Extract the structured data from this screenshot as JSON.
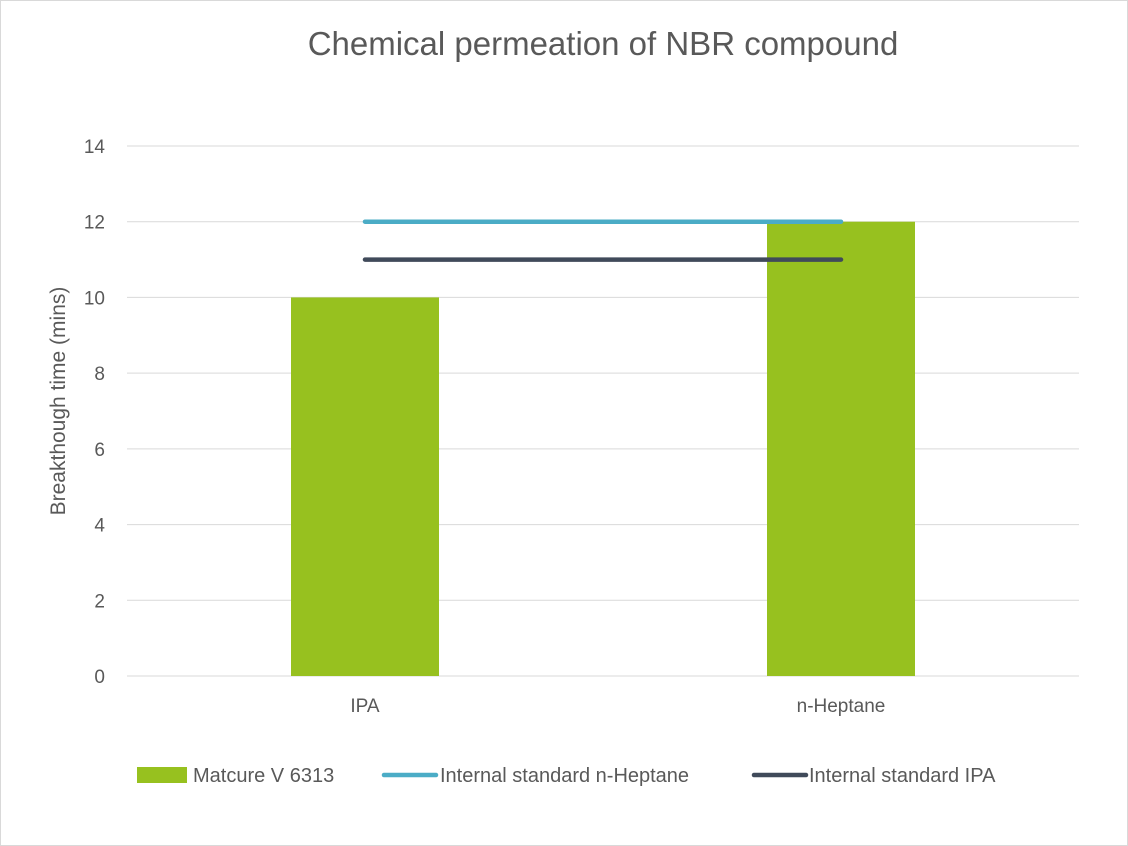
{
  "chart_data": {
    "type": "bar",
    "title": "Chemical permeation of NBR compound",
    "xlabel": "",
    "ylabel": "Breakthough time (mins)",
    "categories": [
      "IPA",
      "n-Heptane"
    ],
    "ylim": [
      0,
      14
    ],
    "yticks": [
      0,
      2,
      4,
      6,
      8,
      10,
      12,
      14
    ],
    "grid": true,
    "legend_position": "bottom",
    "series": [
      {
        "name": "Matcure V 6313",
        "type": "bar",
        "values": [
          10,
          12
        ],
        "color": "#97c11f"
      },
      {
        "name": "Internal standard n-Heptane",
        "type": "line",
        "values": [
          12,
          12
        ],
        "color": "#4bacc6"
      },
      {
        "name": "Internal standard IPA",
        "type": "line",
        "values": [
          11,
          11
        ],
        "color": "#404a5a"
      }
    ]
  }
}
